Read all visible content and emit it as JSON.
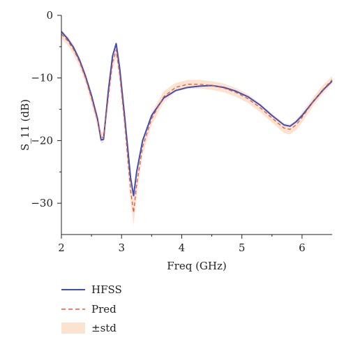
{
  "chart_data": {
    "type": "line",
    "title": "",
    "xlabel": "Freq (GHz)",
    "ylabel": "S_11 (dB)",
    "xlim": [
      2,
      6.5
    ],
    "ylim": [
      -35,
      0
    ],
    "xticks": [
      2,
      3,
      4,
      5,
      6
    ],
    "yticks": [
      0,
      -10,
      -20,
      -30
    ],
    "grid": false,
    "legend_position": "bottom-left, below plot",
    "series": [
      {
        "name": "HFSS",
        "style": "solid",
        "color": "#3b4fb8",
        "x": [
          2.0,
          2.1,
          2.2,
          2.3,
          2.4,
          2.5,
          2.6,
          2.66,
          2.7,
          2.78,
          2.85,
          2.91,
          2.97,
          3.05,
          3.15,
          3.2,
          3.25,
          3.35,
          3.5,
          3.7,
          3.9,
          4.1,
          4.3,
          4.5,
          4.7,
          4.9,
          5.1,
          5.3,
          5.5,
          5.7,
          5.8,
          5.9,
          6.0,
          6.2,
          6.35,
          6.5
        ],
        "values": [
          -2.6,
          -3.7,
          -5.1,
          -7.1,
          -9.7,
          -12.8,
          -16.5,
          -19.9,
          -19.8,
          -12.0,
          -6.5,
          -4.5,
          -8.5,
          -16.0,
          -26.0,
          -28.8,
          -25.0,
          -20.0,
          -16.0,
          -13.2,
          -12.0,
          -11.5,
          -11.3,
          -11.2,
          -11.5,
          -12.1,
          -13.0,
          -14.3,
          -16.0,
          -17.5,
          -17.7,
          -17.0,
          -16.0,
          -13.6,
          -11.9,
          -10.5
        ]
      },
      {
        "name": "Pred",
        "style": "dashed",
        "color": "#e8553a",
        "x": [
          2.0,
          2.1,
          2.2,
          2.3,
          2.4,
          2.5,
          2.6,
          2.66,
          2.7,
          2.78,
          2.85,
          2.91,
          2.97,
          3.05,
          3.15,
          3.2,
          3.25,
          3.35,
          3.5,
          3.7,
          3.9,
          4.1,
          4.3,
          4.5,
          4.7,
          4.9,
          5.1,
          5.3,
          5.5,
          5.7,
          5.8,
          5.9,
          6.0,
          6.2,
          6.35,
          6.5
        ],
        "values": [
          -3.0,
          -4.0,
          -5.4,
          -7.4,
          -10.0,
          -13.2,
          -16.8,
          -19.5,
          -19.5,
          -13.0,
          -7.5,
          -5.5,
          -9.5,
          -17.0,
          -28.0,
          -31.5,
          -27.0,
          -21.0,
          -16.5,
          -13.0,
          -11.5,
          -11.0,
          -11.0,
          -11.2,
          -11.6,
          -12.3,
          -13.3,
          -14.7,
          -16.4,
          -18.0,
          -18.2,
          -17.5,
          -16.3,
          -13.6,
          -11.8,
          -10.3
        ]
      }
    ],
    "band": {
      "name": "±std",
      "color": "#fbe3d0",
      "x": [
        2.0,
        2.1,
        2.2,
        2.3,
        2.4,
        2.5,
        2.6,
        2.66,
        2.7,
        2.78,
        2.85,
        2.91,
        2.97,
        3.05,
        3.15,
        3.2,
        3.25,
        3.35,
        3.5,
        3.7,
        3.9,
        4.1,
        4.3,
        4.5,
        4.7,
        4.9,
        5.1,
        5.3,
        5.5,
        5.7,
        5.8,
        5.9,
        6.0,
        6.2,
        6.35,
        6.5
      ],
      "upper": [
        -2.3,
        -3.3,
        -4.6,
        -6.6,
        -9.2,
        -12.3,
        -15.9,
        -18.6,
        -18.6,
        -11.8,
        -6.3,
        -4.3,
        -8.2,
        -15.6,
        -26.2,
        -29.5,
        -25.2,
        -19.8,
        -15.5,
        -12.1,
        -10.8,
        -10.3,
        -10.3,
        -10.5,
        -10.9,
        -11.6,
        -12.6,
        -14.0,
        -15.7,
        -17.2,
        -17.4,
        -16.7,
        -15.5,
        -12.9,
        -11.1,
        -9.7
      ],
      "lower": [
        -3.7,
        -4.7,
        -6.2,
        -8.2,
        -10.8,
        -14.1,
        -17.7,
        -20.4,
        -20.4,
        -14.2,
        -8.7,
        -6.7,
        -10.8,
        -18.4,
        -29.8,
        -33.5,
        -28.8,
        -22.2,
        -17.5,
        -13.9,
        -12.2,
        -11.7,
        -11.7,
        -11.9,
        -12.3,
        -13.0,
        -14.0,
        -15.4,
        -17.1,
        -18.8,
        -19.0,
        -18.3,
        -17.1,
        -14.3,
        -12.5,
        -10.9
      ]
    }
  }
}
